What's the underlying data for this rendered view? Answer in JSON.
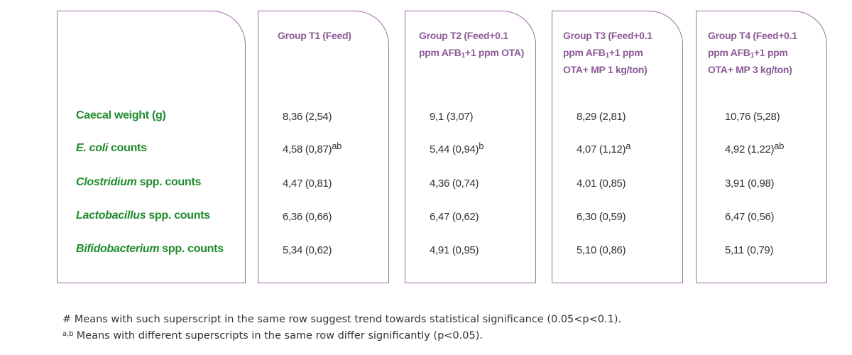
{
  "table": {
    "columns": [
      [
        {
          "text": "Group T1 (Feed)"
        }
      ],
      [
        {
          "text": "Group T2 (Feed+0.1 ppm AFB"
        },
        {
          "sub": "1"
        },
        {
          "text": "+1 ppm OTA)"
        }
      ],
      [
        {
          "text": "Group T3 (Feed+0.1 ppm AFB"
        },
        {
          "sub": "1"
        },
        {
          "text": "+1 ppm OTA+ MP 1 kg/ton)"
        }
      ],
      [
        {
          "text": "Group T4 (Feed+0.1 ppm AFB"
        },
        {
          "sub": "1"
        },
        {
          "text": "+1 ppm OTA+ MP 3 kg/ton)"
        }
      ]
    ],
    "rows": [
      {
        "label": [
          {
            "text": "Caecal weight (g)"
          }
        ],
        "cells": [
          {
            "value": "8,36 (2,54)"
          },
          {
            "value": "9,1 (3,07)"
          },
          {
            "value": "8,29 (2,81)"
          },
          {
            "value": "10,76 (5,28)"
          }
        ]
      },
      {
        "label": [
          {
            "italic": "E. coli"
          },
          {
            "text": "counts"
          }
        ],
        "cells": [
          {
            "value": "4,58 (0,87)",
            "sup": "ab"
          },
          {
            "value": "5,44 (0,94)",
            "sup": "b"
          },
          {
            "value": "4,07 (1,12)",
            "sup": "a"
          },
          {
            "value": "4,92 (1,22)",
            "sup": "ab"
          }
        ]
      },
      {
        "label": [
          {
            "italic": "Clostridium"
          },
          {
            "text": "spp. counts"
          }
        ],
        "cells": [
          {
            "value": "4,47 (0,81)"
          },
          {
            "value": "4,36 (0,74)"
          },
          {
            "value": "4,01 (0,85)"
          },
          {
            "value": "3,91 (0,98)"
          }
        ]
      },
      {
        "label": [
          {
            "italic": "Lactobacillus"
          },
          {
            "text": "spp. counts"
          }
        ],
        "cells": [
          {
            "value": "6,36 (0,66)"
          },
          {
            "value": "6,47 (0,62)"
          },
          {
            "value": "6,30 (0,59)"
          },
          {
            "value": "6,47 (0,56)"
          }
        ]
      },
      {
        "label": [
          {
            "italic": "Bifidobacterium"
          },
          {
            "text": "spp. counts"
          }
        ],
        "cells": [
          {
            "value": "5,34 (0,62)"
          },
          {
            "value": "4,91 (0,95)"
          },
          {
            "value": "5,10 (0,86)"
          },
          {
            "value": "5,11 (0,79)"
          }
        ]
      }
    ]
  },
  "footnotes": [
    {
      "mark": "#",
      "text": "Means with such superscript in the same row suggest trend towards statistical significance (0.05<p<0.1)."
    },
    {
      "mark": "a,b",
      "text": "Means with different superscripts in the same row differ significantly (p<0.05)."
    }
  ]
}
